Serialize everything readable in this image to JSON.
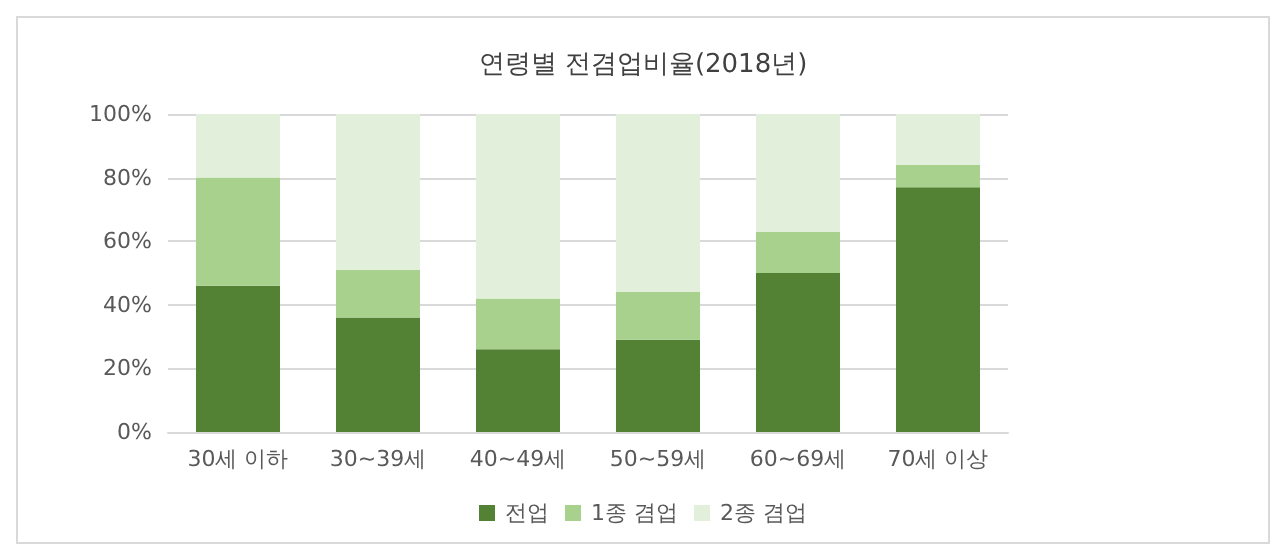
{
  "chart_data": {
    "type": "bar",
    "stacked": true,
    "title": "연령별 전겸업비율(2018년)",
    "categories": [
      "30세 이하",
      "30~39세",
      "40~49세",
      "50~59세",
      "60~69세",
      "70세 이상"
    ],
    "series": [
      {
        "name": "전업",
        "color": "#548235",
        "values": [
          46,
          36,
          26,
          29,
          50,
          77
        ]
      },
      {
        "name": "1종 겸업",
        "color": "#a9d18e",
        "values": [
          34,
          15,
          16,
          15,
          13,
          7
        ]
      },
      {
        "name": "2종 겸업",
        "color": "#e2efda",
        "values": [
          20,
          49,
          58,
          56,
          37,
          16
        ]
      }
    ],
    "ylim": [
      0,
      100
    ],
    "yticks": [
      {
        "value": 0,
        "label": "0%"
      },
      {
        "value": 20,
        "label": "20%"
      },
      {
        "value": 40,
        "label": "40%"
      },
      {
        "value": 60,
        "label": "60%"
      },
      {
        "value": 80,
        "label": "80%"
      },
      {
        "value": 100,
        "label": "100%"
      }
    ],
    "grid": "y",
    "legend": "bottom"
  }
}
